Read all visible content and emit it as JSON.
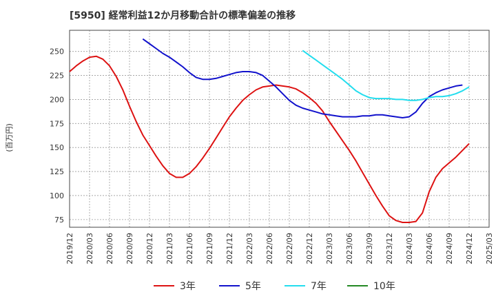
{
  "chart_data": {
    "type": "line",
    "title": "[5950]  経常利益12か月移動合計の標準偏差の推移",
    "ylabel": "(百万円)",
    "xlabel": "",
    "ylim": [
      67,
      272
    ],
    "yticks": [
      75,
      100,
      125,
      150,
      175,
      200,
      225,
      250
    ],
    "xlim": [
      "2019-12",
      "2025-03"
    ],
    "xticks": [
      "2019/12",
      "2020/03",
      "2020/06",
      "2020/09",
      "2020/12",
      "2021/03",
      "2021/06",
      "2021/09",
      "2021/12",
      "2022/03",
      "2022/06",
      "2022/09",
      "2022/12",
      "2023/03",
      "2023/06",
      "2023/09",
      "2023/12",
      "2024/03",
      "2024/06",
      "2024/09",
      "2024/12",
      "2025/03"
    ],
    "grid": true,
    "legend_position": "bottom",
    "series": [
      {
        "name": "3年",
        "color": "#dd1111",
        "points": [
          [
            "2019-12",
            229
          ],
          [
            "2020-01",
            235
          ],
          [
            "2020-02",
            240
          ],
          [
            "2020-03",
            244
          ],
          [
            "2020-04",
            245
          ],
          [
            "2020-05",
            242
          ],
          [
            "2020-06",
            235
          ],
          [
            "2020-07",
            224
          ],
          [
            "2020-08",
            210
          ],
          [
            "2020-09",
            193
          ],
          [
            "2020-10",
            177
          ],
          [
            "2020-11",
            163
          ],
          [
            "2020-12",
            152
          ],
          [
            "2021-01",
            141
          ],
          [
            "2021-02",
            131
          ],
          [
            "2021-03",
            123
          ],
          [
            "2021-04",
            119
          ],
          [
            "2021-05",
            119
          ],
          [
            "2021-06",
            123
          ],
          [
            "2021-07",
            130
          ],
          [
            "2021-08",
            139
          ],
          [
            "2021-09",
            149
          ],
          [
            "2021-10",
            160
          ],
          [
            "2021-11",
            171
          ],
          [
            "2021-12",
            182
          ],
          [
            "2022-01",
            191
          ],
          [
            "2022-02",
            199
          ],
          [
            "2022-03",
            205
          ],
          [
            "2022-04",
            210
          ],
          [
            "2022-05",
            213
          ],
          [
            "2022-06",
            214
          ],
          [
            "2022-07",
            215
          ],
          [
            "2022-08",
            214
          ],
          [
            "2022-09",
            213
          ],
          [
            "2022-10",
            211
          ],
          [
            "2022-11",
            207
          ],
          [
            "2022-12",
            202
          ],
          [
            "2023-01",
            196
          ],
          [
            "2023-02",
            188
          ],
          [
            "2023-03",
            177
          ],
          [
            "2023-04",
            167
          ],
          [
            "2023-05",
            157
          ],
          [
            "2023-06",
            147
          ],
          [
            "2023-07",
            136
          ],
          [
            "2023-08",
            124
          ],
          [
            "2023-09",
            112
          ],
          [
            "2023-10",
            100
          ],
          [
            "2023-11",
            89
          ],
          [
            "2023-12",
            79
          ],
          [
            "2024-01",
            74
          ],
          [
            "2024-02",
            72
          ],
          [
            "2024-03",
            72
          ],
          [
            "2024-04",
            73
          ],
          [
            "2024-05",
            82
          ],
          [
            "2024-06",
            104
          ],
          [
            "2024-07",
            119
          ],
          [
            "2024-08",
            128
          ],
          [
            "2024-09",
            134
          ],
          [
            "2024-10",
            140
          ],
          [
            "2024-11",
            147
          ],
          [
            "2024-12",
            154
          ]
        ]
      },
      {
        "name": "5年",
        "color": "#1111cc",
        "points": [
          [
            "2020-11",
            263
          ],
          [
            "2020-12",
            258
          ],
          [
            "2021-01",
            253
          ],
          [
            "2021-02",
            248
          ],
          [
            "2021-03",
            244
          ],
          [
            "2021-04",
            239
          ],
          [
            "2021-05",
            234
          ],
          [
            "2021-06",
            228
          ],
          [
            "2021-07",
            223
          ],
          [
            "2021-08",
            221
          ],
          [
            "2021-09",
            221
          ],
          [
            "2021-10",
            222
          ],
          [
            "2021-11",
            224
          ],
          [
            "2021-12",
            226
          ],
          [
            "2022-01",
            228
          ],
          [
            "2022-02",
            229
          ],
          [
            "2022-03",
            229
          ],
          [
            "2022-04",
            228
          ],
          [
            "2022-05",
            225
          ],
          [
            "2022-06",
            219
          ],
          [
            "2022-07",
            213
          ],
          [
            "2022-08",
            206
          ],
          [
            "2022-09",
            199
          ],
          [
            "2022-10",
            194
          ],
          [
            "2022-11",
            191
          ],
          [
            "2022-12",
            189
          ],
          [
            "2023-01",
            187
          ],
          [
            "2023-02",
            185
          ],
          [
            "2023-03",
            184
          ],
          [
            "2023-04",
            183
          ],
          [
            "2023-05",
            182
          ],
          [
            "2023-06",
            182
          ],
          [
            "2023-07",
            182
          ],
          [
            "2023-08",
            183
          ],
          [
            "2023-09",
            183
          ],
          [
            "2023-10",
            184
          ],
          [
            "2023-11",
            184
          ],
          [
            "2023-12",
            183
          ],
          [
            "2024-01",
            182
          ],
          [
            "2024-02",
            181
          ],
          [
            "2024-03",
            182
          ],
          [
            "2024-04",
            187
          ],
          [
            "2024-05",
            196
          ],
          [
            "2024-06",
            203
          ],
          [
            "2024-07",
            207
          ],
          [
            "2024-08",
            210
          ],
          [
            "2024-09",
            212
          ],
          [
            "2024-10",
            214
          ],
          [
            "2024-11",
            215
          ]
        ]
      },
      {
        "name": "7年",
        "color": "#22ddee",
        "points": [
          [
            "2022-11",
            251
          ],
          [
            "2022-12",
            246
          ],
          [
            "2023-01",
            241
          ],
          [
            "2023-02",
            236
          ],
          [
            "2023-03",
            231
          ],
          [
            "2023-04",
            226
          ],
          [
            "2023-05",
            221
          ],
          [
            "2023-06",
            215
          ],
          [
            "2023-07",
            209
          ],
          [
            "2023-08",
            205
          ],
          [
            "2023-09",
            202
          ],
          [
            "2023-10",
            201
          ],
          [
            "2023-11",
            201
          ],
          [
            "2023-12",
            201
          ],
          [
            "2024-01",
            200
          ],
          [
            "2024-02",
            200
          ],
          [
            "2024-03",
            199
          ],
          [
            "2024-04",
            199
          ],
          [
            "2024-05",
            200
          ],
          [
            "2024-06",
            202
          ],
          [
            "2024-07",
            203
          ],
          [
            "2024-08",
            203
          ],
          [
            "2024-09",
            204
          ],
          [
            "2024-10",
            206
          ],
          [
            "2024-11",
            209
          ],
          [
            "2024-12",
            213
          ]
        ]
      },
      {
        "name": "10年",
        "color": "#228822",
        "points": []
      }
    ]
  }
}
